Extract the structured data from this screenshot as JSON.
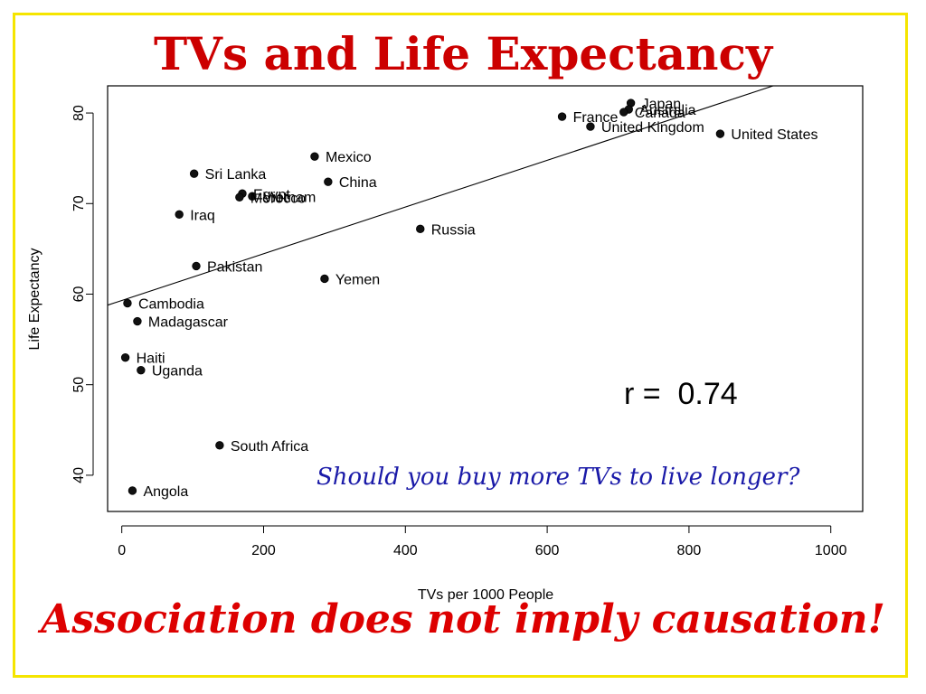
{
  "slide": {
    "title": "TVs and Life Expectancy",
    "question": "Should you buy more TVs to live longer?",
    "footer": "Association does not imply causation!"
  },
  "chart_data": {
    "type": "scatter",
    "title": "",
    "xlabel": "TVs per 1000 People",
    "ylabel": "Life Expectancy",
    "xlim": [
      -20,
      1045
    ],
    "ylim": [
      36,
      83
    ],
    "x_ticks": [
      0,
      200,
      400,
      600,
      800,
      1000
    ],
    "y_ticks": [
      40,
      50,
      60,
      70,
      80
    ],
    "grid": false,
    "annotation": "r =  0.74",
    "regression_line": {
      "slope": 0.0258,
      "intercept": 59.3
    },
    "points": [
      {
        "label": "Japan",
        "x": 718,
        "y": 81.1
      },
      {
        "label": "Australia",
        "x": 715,
        "y": 80.4
      },
      {
        "label": "Canada",
        "x": 708,
        "y": 80.1
      },
      {
        "label": "France",
        "x": 621,
        "y": 79.6
      },
      {
        "label": "United Kingdom",
        "x": 661,
        "y": 78.5
      },
      {
        "label": "United States",
        "x": 844,
        "y": 77.7
      },
      {
        "label": "Mexico",
        "x": 272,
        "y": 75.2
      },
      {
        "label": "China",
        "x": 291,
        "y": 72.4
      },
      {
        "label": "Sri Lanka",
        "x": 102,
        "y": 73.3
      },
      {
        "label": "Egypt",
        "x": 170,
        "y": 71.1
      },
      {
        "label": "Vietnam",
        "x": 184,
        "y": 70.8
      },
      {
        "label": "Morocco",
        "x": 166,
        "y": 70.7
      },
      {
        "label": "Iraq",
        "x": 81,
        "y": 68.8
      },
      {
        "label": "Russia",
        "x": 421,
        "y": 67.2
      },
      {
        "label": "Pakistan",
        "x": 105,
        "y": 63.1
      },
      {
        "label": "Yemen",
        "x": 286,
        "y": 61.7
      },
      {
        "label": "Cambodia",
        "x": 8,
        "y": 59.0
      },
      {
        "label": "Madagascar",
        "x": 22,
        "y": 57.0
      },
      {
        "label": "Haiti",
        "x": 5,
        "y": 53.0
      },
      {
        "label": "Uganda",
        "x": 27,
        "y": 51.6
      },
      {
        "label": "South Africa",
        "x": 138,
        "y": 43.3
      },
      {
        "label": "Angola",
        "x": 15,
        "y": 38.3
      }
    ]
  }
}
